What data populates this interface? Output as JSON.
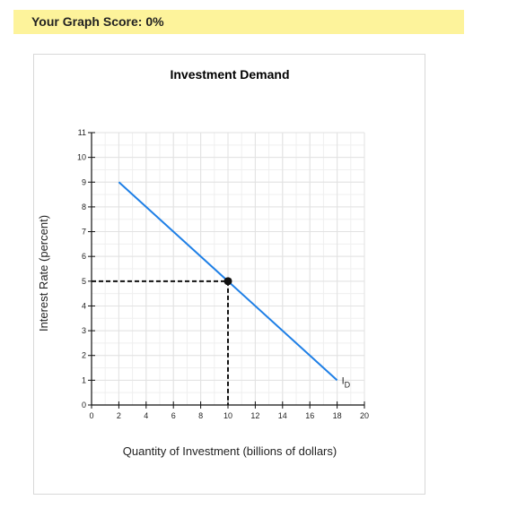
{
  "score": {
    "label": "Your Graph Score: 0%"
  },
  "chart_data": {
    "type": "line",
    "title": "Investment Demand",
    "xlabel": "Quantity of Investment (billions of dollars)",
    "ylabel": "Interest Rate (percent)",
    "xlim": [
      0,
      20
    ],
    "ylim": [
      0,
      11
    ],
    "x_ticks": [
      0,
      2,
      4,
      6,
      8,
      10,
      12,
      14,
      16,
      18,
      20
    ],
    "y_ticks": [
      0,
      1,
      2,
      3,
      4,
      5,
      6,
      7,
      8,
      9,
      10,
      11
    ],
    "grid": true,
    "series": [
      {
        "name": "ID",
        "label_main": "I",
        "label_sub": "D",
        "color": "#1e7fe6",
        "x": [
          2,
          18
        ],
        "y": [
          9,
          1
        ]
      }
    ],
    "highlight_point": {
      "x": 10,
      "y": 5,
      "dashed_guides": true
    }
  }
}
